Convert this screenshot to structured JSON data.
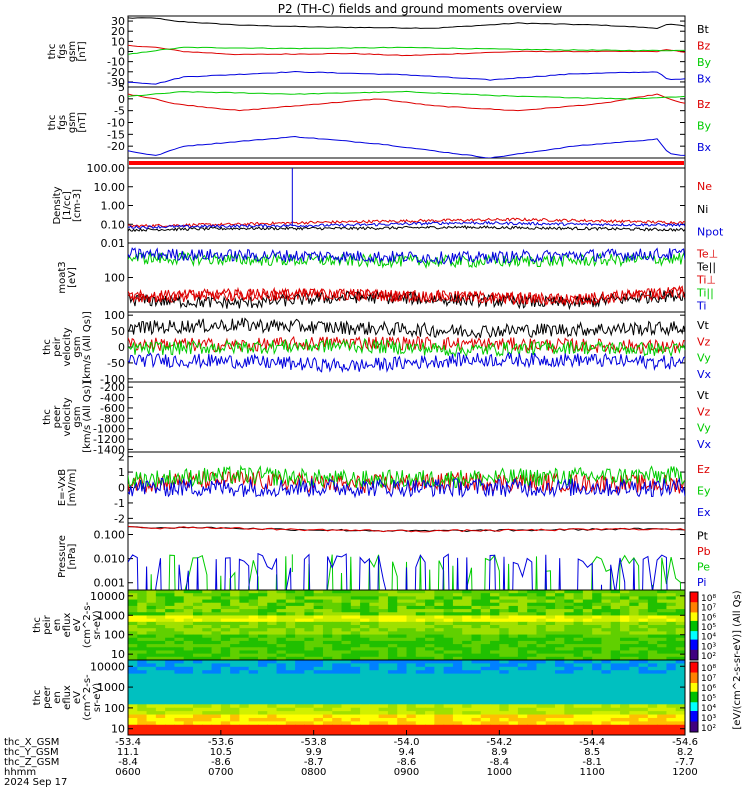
{
  "title": "P2 (TH-C) fields and ground moments overview",
  "colors": {
    "black": "#000000",
    "red": "#dd0000",
    "green": "#00cc00",
    "blue": "#0000dd"
  },
  "chart_data": [
    {
      "type": "line",
      "ylabel": [
        "thc",
        "fgs",
        "gsm",
        "[nT]"
      ],
      "ylim": [
        -35,
        35
      ],
      "yticks": [
        30,
        20,
        10,
        0,
        -10,
        -20,
        -30
      ],
      "series": [
        {
          "name": "Bt",
          "color": "black",
          "x": [
            0,
            0.05,
            0.08,
            0.2,
            0.35,
            0.55,
            0.7,
            0.85,
            0.95,
            0.97,
            1
          ],
          "values": [
            33,
            33,
            30,
            26,
            24,
            23,
            28,
            26,
            23,
            27,
            25
          ]
        },
        {
          "name": "Bz",
          "color": "red",
          "x": [
            0,
            0.05,
            0.1,
            0.2,
            0.4,
            0.5,
            0.7,
            0.95,
            0.97,
            1
          ],
          "values": [
            6,
            4,
            0,
            -3,
            -2,
            -4,
            0,
            0,
            2,
            -1
          ]
        },
        {
          "name": "By",
          "color": "green",
          "x": [
            0,
            0.05,
            0.1,
            0.3,
            0.5,
            0.7,
            0.9,
            1
          ],
          "values": [
            -3,
            1,
            4,
            3,
            4,
            2,
            1,
            1
          ]
        },
        {
          "name": "Bx",
          "color": "blue",
          "x": [
            0,
            0.05,
            0.1,
            0.3,
            0.5,
            0.65,
            0.8,
            0.95,
            0.97,
            1
          ],
          "values": [
            -30,
            -32,
            -25,
            -20,
            -23,
            -28,
            -22,
            -20,
            -28,
            -27
          ]
        }
      ]
    },
    {
      "type": "line",
      "ylabel": [
        "thc",
        "fgs",
        "gsm",
        "[nT]"
      ],
      "ylim": [
        -25,
        5
      ],
      "yticks": [
        5,
        0,
        -5,
        -10,
        -15,
        -20
      ],
      "series": [
        {
          "name": "Bz",
          "color": "red",
          "x": [
            0,
            0.05,
            0.08,
            0.2,
            0.35,
            0.45,
            0.55,
            0.7,
            0.85,
            0.95,
            0.97,
            1
          ],
          "values": [
            2,
            0,
            -2,
            -5,
            -2,
            0,
            -3,
            -5,
            -2,
            2,
            0,
            -2
          ]
        },
        {
          "name": "By",
          "color": "green",
          "x": [
            0,
            0.1,
            0.3,
            0.5,
            0.7,
            0.9,
            1
          ],
          "values": [
            1,
            3,
            2,
            3,
            1,
            0,
            1
          ]
        },
        {
          "name": "Bx",
          "color": "blue",
          "x": [
            0,
            0.05,
            0.1,
            0.3,
            0.45,
            0.65,
            0.8,
            0.95,
            0.97,
            1
          ],
          "values": [
            -22,
            -24,
            -20,
            -16,
            -19,
            -25,
            -20,
            -17,
            -23,
            -24
          ]
        }
      ]
    },
    {
      "type": "line",
      "ylabel": [
        "Density",
        "[1/cc]",
        "[cm-3]"
      ],
      "scale": "log",
      "ylim": [
        0.01,
        100
      ],
      "yticks": [
        100,
        10,
        1,
        0.1,
        0.01
      ],
      "yticklabels": [
        "100.00",
        "10.00",
        "1.00",
        "0.10",
        "0.01"
      ],
      "series": [
        {
          "name": "Ne",
          "color": "red",
          "x": [
            0,
            0.1,
            0.2,
            0.3,
            0.5,
            0.7,
            0.9,
            1
          ],
          "values": [
            0.08,
            0.09,
            0.1,
            0.12,
            0.15,
            0.18,
            0.14,
            0.12
          ]
        },
        {
          "name": "Ni",
          "color": "black",
          "x": [
            0,
            0.2,
            0.4,
            0.6,
            0.8,
            1
          ],
          "values": [
            0.05,
            0.06,
            0.06,
            0.07,
            0.06,
            0.05
          ]
        },
        {
          "name": "Npot",
          "color": "blue",
          "x": [
            0,
            0.2,
            0.4,
            0.6,
            0.8,
            1
          ],
          "values": [
            0.07,
            0.08,
            0.09,
            0.12,
            0.1,
            0.09
          ]
        }
      ],
      "spike": {
        "x": 0.295,
        "value": 100
      }
    },
    {
      "type": "line",
      "ylabel": [
        "moat3",
        "[eV]"
      ],
      "scale": "log",
      "ylim": [
        20,
        500
      ],
      "yticks": [
        100
      ],
      "yticklabels": [
        "100"
      ],
      "series": [
        {
          "name": "Te⊥",
          "color": "red",
          "x": [
            0,
            0.2,
            0.4,
            0.6,
            0.8,
            1
          ],
          "values": [
            40,
            45,
            45,
            40,
            35,
            50
          ]
        },
        {
          "name": "Te||",
          "color": "black",
          "x": [
            0,
            0.2,
            0.4,
            0.6,
            0.8,
            1
          ],
          "values": [
            35,
            30,
            40,
            35,
            30,
            45
          ]
        },
        {
          "name": "Ti⊥",
          "color": "red",
          "x": [
            0,
            0.2,
            0.4,
            0.6,
            0.8,
            1
          ],
          "values": [
            40,
            45,
            45,
            40,
            35,
            50
          ]
        },
        {
          "name": "Ti||",
          "color": "green",
          "x": [
            0,
            0.2,
            0.4,
            0.6,
            0.8,
            1
          ],
          "values": [
            250,
            230,
            220,
            210,
            220,
            240
          ]
        },
        {
          "name": "Ti",
          "color": "blue",
          "x": [
            0,
            0.2,
            0.4,
            0.6,
            0.8,
            1
          ],
          "values": [
            300,
            280,
            270,
            250,
            280,
            300
          ]
        }
      ]
    },
    {
      "type": "line",
      "ylabel": [
        "thc",
        "peir",
        "velocity",
        "gsm",
        "[km/s (All Qs)]"
      ],
      "ylim": [
        -110,
        110
      ],
      "yticks": [
        100,
        50,
        0,
        -50,
        -100
      ],
      "series": [
        {
          "name": "Vt",
          "color": "black",
          "x": [
            0,
            0.2,
            0.4,
            0.6,
            0.8,
            1
          ],
          "values": [
            60,
            70,
            60,
            50,
            55,
            60
          ]
        },
        {
          "name": "Vz",
          "color": "red",
          "x": [
            0,
            0.2,
            0.4,
            0.6,
            0.8,
            1
          ],
          "values": [
            10,
            5,
            15,
            10,
            5,
            0
          ]
        },
        {
          "name": "Vy",
          "color": "green",
          "x": [
            0,
            0.2,
            0.4,
            0.6,
            0.8,
            1
          ],
          "values": [
            -5,
            0,
            5,
            -10,
            0,
            -10
          ]
        },
        {
          "name": "Vx",
          "color": "blue",
          "x": [
            0,
            0.2,
            0.4,
            0.6,
            0.8,
            1
          ],
          "values": [
            -40,
            -45,
            -60,
            -40,
            -40,
            -50
          ]
        }
      ]
    },
    {
      "type": "line",
      "ylabel": [
        "thc",
        "peer",
        "velocity",
        "gsm",
        "[km/s (All Qs)]"
      ],
      "ylim": [
        -1450,
        -100
      ],
      "yticks": [
        -200,
        -400,
        -600,
        -800,
        -1000,
        -1200,
        -1400
      ],
      "series": [
        {
          "name": "Vt",
          "color": "black",
          "x": [],
          "values": []
        },
        {
          "name": "Vz",
          "color": "red",
          "x": [],
          "values": []
        },
        {
          "name": "Vy",
          "color": "green",
          "x": [],
          "values": []
        },
        {
          "name": "Vx",
          "color": "blue",
          "x": [],
          "values": []
        }
      ]
    },
    {
      "type": "line",
      "ylabel": [
        "E=-VxB",
        "[mV/m]"
      ],
      "ylim": [
        -2.3,
        2.3
      ],
      "yticks": [
        2,
        1,
        0,
        -1,
        -2
      ],
      "series": [
        {
          "name": "Ez",
          "color": "red",
          "x": [
            0,
            0.2,
            0.4,
            0.6,
            0.8,
            1
          ],
          "values": [
            0.3,
            0.5,
            0.2,
            0.4,
            0.3,
            0.2
          ]
        },
        {
          "name": "Ey",
          "color": "green",
          "x": [
            0,
            0.2,
            0.4,
            0.6,
            0.8,
            1
          ],
          "values": [
            0.5,
            0.8,
            0.5,
            0.6,
            0.7,
            0.8
          ]
        },
        {
          "name": "Ex",
          "color": "blue",
          "x": [
            0,
            0.2,
            0.4,
            0.6,
            0.8,
            1
          ],
          "values": [
            0,
            0,
            0,
            0,
            0,
            0
          ]
        }
      ]
    },
    {
      "type": "line",
      "ylabel": [
        "Pressure",
        "[nPa]"
      ],
      "scale": "log",
      "ylim": [
        0.0005,
        0.3
      ],
      "yticks": [
        0.1,
        0.01,
        0.001
      ],
      "yticklabels": [
        "0.100",
        "0.010",
        "0.001"
      ],
      "series": [
        {
          "name": "Pt",
          "color": "black",
          "x": [
            0,
            0.05,
            0.1,
            0.3,
            0.5,
            0.7,
            0.9,
            1
          ],
          "values": [
            0.22,
            0.18,
            0.2,
            0.16,
            0.14,
            0.15,
            0.17,
            0.16
          ]
        },
        {
          "name": "Pb",
          "color": "red",
          "x": [
            0,
            0.05,
            0.1,
            0.3,
            0.5,
            0.7,
            0.9,
            1
          ],
          "values": [
            0.22,
            0.18,
            0.2,
            0.16,
            0.14,
            0.15,
            0.17,
            0.16
          ]
        },
        {
          "name": "Pe",
          "color": "green",
          "x": [
            0,
            0.1,
            0.2,
            0.3,
            0.5,
            0.7,
            0.85,
            1
          ],
          "values": [
            0.0015,
            0.0012,
            0.001,
            0.0011,
            0.0012,
            0.001,
            0.0009,
            0.0008
          ]
        },
        {
          "name": "Pi",
          "color": "blue",
          "x": [
            0,
            0.2,
            0.4,
            0.6,
            0.8,
            1
          ],
          "values": [
            0.0025,
            0.0023,
            0.0022,
            0.0021,
            0.0023,
            0.0022
          ]
        }
      ],
      "spike": {
        "x": 0.295,
        "value": 0.015
      }
    },
    {
      "type": "heatmap",
      "ylabel": [
        "thc",
        "peir",
        "en",
        "eflux",
        "eV",
        "(cm^2-s-",
        "sr-eV)"
      ],
      "scale": "log",
      "ylim": [
        5,
        20000
      ],
      "yticks": [
        10000,
        1000,
        100,
        10
      ],
      "yticklabels": [
        "10000",
        "1000",
        "100",
        "10"
      ]
    },
    {
      "type": "heatmap",
      "ylabel": [
        "thc",
        "peer",
        "en",
        "eflux",
        "eV",
        "(cm^2-s-",
        "sr-eV)"
      ],
      "scale": "log",
      "ylim": [
        5,
        20000
      ],
      "yticks": [
        10000,
        1000,
        100,
        10
      ],
      "yticklabels": [
        "10000",
        "1000",
        "100",
        "10"
      ]
    }
  ],
  "colorbar": {
    "labels": [
      "10⁸",
      "10⁷",
      "10⁶",
      "10⁵",
      "10⁴",
      "10³",
      "10²"
    ],
    "title": "[eV/(cm^2-s-sr-eV)] (All Qs)"
  },
  "xaxis": {
    "rows": [
      {
        "label": "thc_X_GSM",
        "values": [
          "-53.4",
          "-53.6",
          "-53.8",
          "-54.0",
          "-54.2",
          "-54.4",
          "-54.6"
        ]
      },
      {
        "label": "thc_Y_GSM",
        "values": [
          "11.1",
          "10.5",
          "9.9",
          "9.4",
          "8.9",
          "8.5",
          "8.2"
        ]
      },
      {
        "label": "thc_Z_GSM",
        "values": [
          "-8.4",
          "-8.6",
          "-8.7",
          "-8.6",
          "-8.4",
          "-8.1",
          "-7.7"
        ]
      },
      {
        "label": "hhmm",
        "values": [
          "0600",
          "0700",
          "0800",
          "0900",
          "1000",
          "1100",
          "1200"
        ]
      }
    ],
    "date": "2024 Sep 17"
  }
}
